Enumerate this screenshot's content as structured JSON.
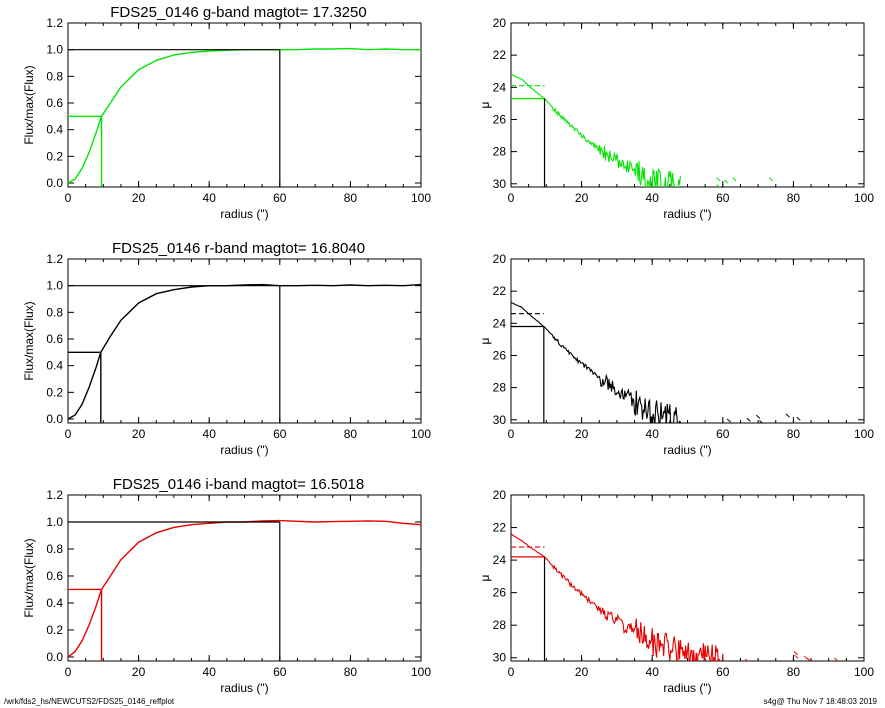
{
  "footer": {
    "left": "/wrk/fds2_hs/NEWCUTS2/FDS25_0146_reffplot",
    "right": "s4g@  Thu Nov  7 18:48:03 2019"
  },
  "colors": {
    "g": "#00e600",
    "r": "#000000",
    "i": "#e60000",
    "frame": "#000000"
  },
  "chart_data": [
    {
      "type": "line",
      "panel": "g-flux",
      "title": "FDS25_0146 g-band  magtot=      17.3250",
      "xlabel": "radius (\")",
      "ylabel": "Flux/max(Flux)",
      "xlim": [
        0,
        100
      ],
      "ylim": [
        -0.03,
        1.2
      ],
      "xticks": [
        "0",
        "20",
        "40",
        "60",
        "80",
        "100"
      ],
      "yticks": [
        "0.0",
        "0.2",
        "0.4",
        "0.6",
        "0.8",
        "1.0",
        "1.2"
      ],
      "color": "#00e600",
      "curve": {
        "x": [
          0,
          2,
          4,
          6,
          8,
          9.5,
          12,
          15,
          20,
          25,
          30,
          35,
          40,
          45,
          50,
          55,
          60,
          65,
          70,
          75,
          80,
          85,
          90,
          95,
          100
        ],
        "y": [
          0,
          0.03,
          0.11,
          0.23,
          0.38,
          0.5,
          0.6,
          0.72,
          0.85,
          0.92,
          0.96,
          0.98,
          0.99,
          0.995,
          1.0,
          1.0,
          1.0,
          1.0,
          1.005,
          1.005,
          1.008,
          1.0,
          1.005,
          1.0,
          1.0
        ]
      },
      "reff": 9.5,
      "half_flux": 0.5,
      "total_radius": 60,
      "total_flux": 1.0
    },
    {
      "type": "line",
      "panel": "g-profile",
      "title": "",
      "xlabel": "radius (\")",
      "ylabel": "μ",
      "xlim": [
        0,
        100
      ],
      "ylim": [
        30.2,
        20
      ],
      "xticks": [
        "0",
        "20",
        "40",
        "60",
        "80",
        "100"
      ],
      "yticks": [
        "20",
        "22",
        "24",
        "26",
        "28",
        "30"
      ],
      "color": "#00e600",
      "profile": {
        "x": [
          0,
          3,
          6,
          9.5,
          12,
          15,
          20,
          25,
          30,
          35,
          40,
          45,
          48
        ],
        "y": [
          23.2,
          23.5,
          24.1,
          24.7,
          25.3,
          26.0,
          27.0,
          27.9,
          28.5,
          29.2,
          29.8,
          30.1,
          30.2
        ]
      },
      "reff": 9.5,
      "mu_eff": 24.7,
      "mu_mean_eff": 23.9
    },
    {
      "type": "line",
      "panel": "r-flux",
      "title": "FDS25_0146 r-band  magtot=      16.8040",
      "xlabel": "radius (\")",
      "ylabel": "Flux/max(Flux)",
      "xlim": [
        0,
        100
      ],
      "ylim": [
        -0.03,
        1.2
      ],
      "xticks": [
        "0",
        "20",
        "40",
        "60",
        "80",
        "100"
      ],
      "yticks": [
        "0.0",
        "0.2",
        "0.4",
        "0.6",
        "0.8",
        "1.0",
        "1.2"
      ],
      "color": "#000000",
      "curve": {
        "x": [
          0,
          2,
          4,
          6,
          8,
          9.3,
          12,
          15,
          20,
          25,
          30,
          35,
          40,
          45,
          50,
          55,
          60,
          65,
          70,
          75,
          80,
          85,
          90,
          95,
          100
        ],
        "y": [
          0,
          0.03,
          0.11,
          0.24,
          0.39,
          0.5,
          0.62,
          0.74,
          0.87,
          0.94,
          0.97,
          0.99,
          1.0,
          1.0,
          1.005,
          1.008,
          1.0,
          1.0,
          1.003,
          1.0,
          1.005,
          1.0,
          1.003,
          1.0,
          1.008
        ]
      },
      "reff": 9.3,
      "half_flux": 0.5,
      "total_radius": 60,
      "total_flux": 1.0
    },
    {
      "type": "line",
      "panel": "r-profile",
      "title": "",
      "xlabel": "radius (\")",
      "ylabel": "μ",
      "xlim": [
        0,
        100
      ],
      "ylim": [
        30.2,
        20
      ],
      "xticks": [
        "0",
        "20",
        "40",
        "60",
        "80",
        "100"
      ],
      "yticks": [
        "20",
        "22",
        "24",
        "26",
        "28",
        "30"
      ],
      "color": "#000000",
      "profile": {
        "x": [
          0,
          3,
          6,
          9.3,
          12,
          15,
          20,
          25,
          30,
          35,
          40,
          45,
          50
        ],
        "y": [
          22.7,
          23.0,
          23.6,
          24.2,
          24.8,
          25.5,
          26.5,
          27.4,
          28.1,
          28.8,
          29.5,
          29.9,
          30.0
        ]
      },
      "reff": 9.3,
      "mu_eff": 24.2,
      "mu_mean_eff": 23.4
    },
    {
      "type": "line",
      "panel": "i-flux",
      "title": "FDS25_0146 i-band  magtot=      16.5018",
      "xlabel": "radius (\")",
      "ylabel": "Flux/max(Flux)",
      "xlim": [
        0,
        100
      ],
      "ylim": [
        -0.03,
        1.2
      ],
      "xticks": [
        "0",
        "20",
        "40",
        "60",
        "80",
        "100"
      ],
      "yticks": [
        "0.0",
        "0.2",
        "0.4",
        "0.6",
        "0.8",
        "1.0",
        "1.2"
      ],
      "color": "#e60000",
      "curve": {
        "x": [
          0,
          2,
          4,
          6,
          8,
          9.5,
          12,
          15,
          20,
          25,
          30,
          35,
          40,
          45,
          50,
          55,
          60,
          65,
          70,
          75,
          80,
          85,
          90,
          95,
          100
        ],
        "y": [
          0,
          0.04,
          0.12,
          0.24,
          0.38,
          0.5,
          0.6,
          0.72,
          0.85,
          0.92,
          0.96,
          0.98,
          0.99,
          1.0,
          1.0,
          1.008,
          1.01,
          1.005,
          1.0,
          1.003,
          1.005,
          1.008,
          1.005,
          0.99,
          0.98
        ]
      },
      "reff": 9.5,
      "half_flux": 0.5,
      "total_radius": 60,
      "total_flux": 1.0
    },
    {
      "type": "line",
      "panel": "i-profile",
      "title": "",
      "xlabel": "radius (\")",
      "ylabel": "μ",
      "xlim": [
        0,
        100
      ],
      "ylim": [
        30.2,
        20
      ],
      "xticks": [
        "0",
        "20",
        "40",
        "60",
        "80",
        "100"
      ],
      "yticks": [
        "20",
        "22",
        "24",
        "26",
        "28",
        "30"
      ],
      "color": "#e60000",
      "profile": {
        "x": [
          0,
          3,
          6,
          9.5,
          12,
          15,
          20,
          25,
          30,
          35,
          40,
          45,
          50,
          55,
          60
        ],
        "y": [
          22.4,
          22.8,
          23.3,
          23.8,
          24.4,
          25.1,
          26.1,
          27.0,
          27.8,
          28.4,
          29.0,
          29.5,
          29.8,
          30.0,
          30.1
        ]
      },
      "reff": 9.5,
      "mu_eff": 23.8,
      "mu_mean_eff": 23.2
    }
  ]
}
